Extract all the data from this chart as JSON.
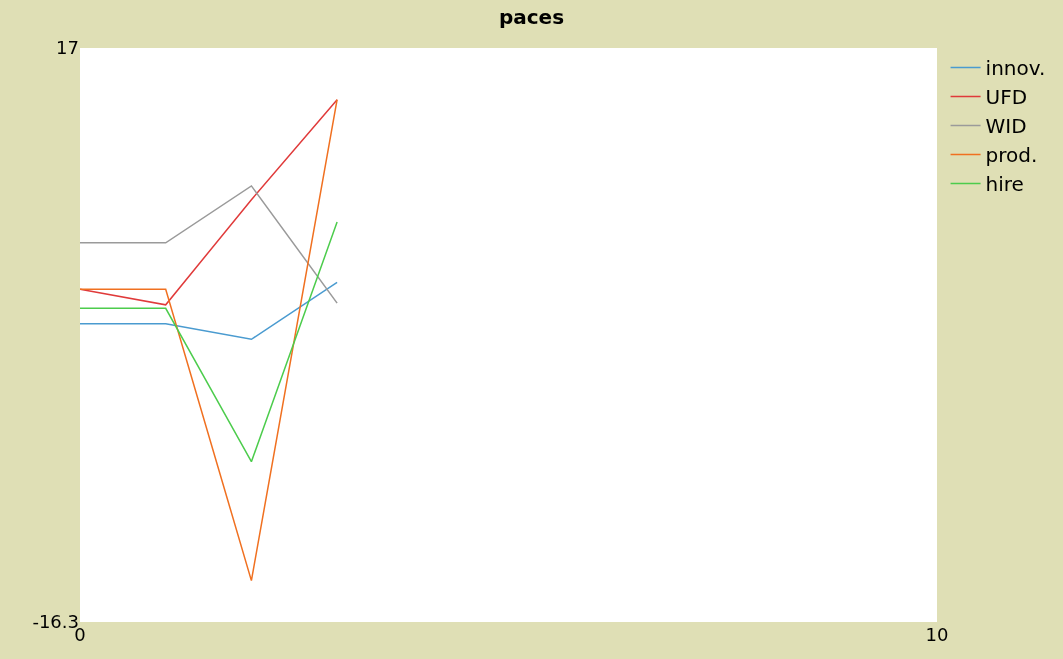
{
  "chart_data": {
    "type": "line",
    "title": "paces",
    "x": [
      0,
      1,
      2,
      3
    ],
    "series": [
      {
        "name": "innov.",
        "color": "#4a9bd0",
        "values": [
          1.0,
          1.0,
          0.1,
          3.4
        ]
      },
      {
        "name": "UFD",
        "color": "#e03a3a",
        "values": [
          3.0,
          2.1,
          8.2,
          14.0
        ]
      },
      {
        "name": "WID",
        "color": "#9a9a9a",
        "values": [
          5.7,
          5.7,
          9.0,
          2.2
        ]
      },
      {
        "name": "prod.",
        "color": "#f07020",
        "values": [
          3.0,
          3.0,
          -13.9,
          14.0
        ]
      },
      {
        "name": "hire",
        "color": "#4ccc4c",
        "values": [
          1.9,
          1.9,
          -7.0,
          6.9
        ]
      }
    ],
    "xlim": [
      0,
      10
    ],
    "xticks": [
      0,
      10
    ],
    "ylim": [
      -16.3,
      17
    ],
    "yticks": [
      -16.3,
      17
    ],
    "legend": "top right",
    "marker": "none",
    "line_style": "solid"
  }
}
